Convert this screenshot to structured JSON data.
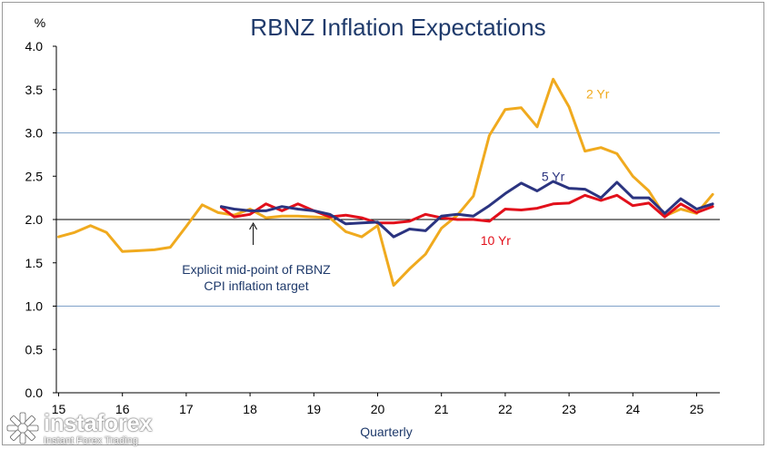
{
  "chart_data": {
    "type": "line",
    "title": "RBNZ Inflation Expectations",
    "yunit": "%",
    "xlabel": "Quarterly",
    "ylim": [
      0,
      4
    ],
    "yticks": [
      "0.0",
      "0.5",
      "1.0",
      "1.5",
      "2.0",
      "2.5",
      "3.0",
      "3.5",
      "4.0"
    ],
    "xlim": [
      15,
      25.35
    ],
    "xticks": [
      "15",
      "16",
      "17",
      "18",
      "19",
      "20",
      "21",
      "22",
      "23",
      "24",
      "25"
    ],
    "reference_lines": [
      {
        "y": 1.0,
        "color": "#7fa2c9"
      },
      {
        "y": 2.0,
        "color": "#000000"
      },
      {
        "y": 3.0,
        "color": "#7fa2c9"
      }
    ],
    "annotation": {
      "lines": [
        "Explicit mid-point of RBNZ",
        "CPI inflation target"
      ],
      "x": 18.05,
      "y": 2.0
    },
    "series": [
      {
        "name": "2 Yr",
        "color": "#f0aa1e",
        "label_at": [
          23.45,
          3.45
        ],
        "x": [
          15,
          15.25,
          15.5,
          15.75,
          16,
          16.25,
          16.5,
          16.75,
          17,
          17.25,
          17.5,
          17.75,
          18,
          18.25,
          18.5,
          18.75,
          19,
          19.25,
          19.5,
          19.75,
          20,
          20.25,
          20.5,
          20.75,
          21,
          21.25,
          21.5,
          21.75,
          22,
          22.25,
          22.5,
          22.75,
          23,
          23.25,
          23.5,
          23.75,
          24,
          24.25,
          24.5,
          24.75,
          25,
          25.25
        ],
        "values": [
          1.8,
          1.85,
          1.93,
          1.85,
          1.63,
          1.64,
          1.65,
          1.68,
          1.92,
          2.17,
          2.08,
          2.05,
          2.12,
          2.02,
          2.04,
          2.04,
          2.03,
          2.02,
          1.86,
          1.8,
          1.93,
          1.24,
          1.43,
          1.6,
          1.9,
          2.05,
          2.27,
          2.97,
          3.27,
          3.29,
          3.07,
          3.62,
          3.3,
          2.79,
          2.83,
          2.76,
          2.5,
          2.33,
          2.04,
          2.12,
          2.07,
          2.29
        ]
      },
      {
        "name": "5 Yr",
        "color": "#2b3480",
        "label_at": [
          22.75,
          2.5
        ],
        "x": [
          17.55,
          17.75,
          18,
          18.25,
          18.5,
          18.75,
          19,
          19.25,
          19.5,
          19.75,
          20,
          20.25,
          20.5,
          20.75,
          21,
          21.25,
          21.5,
          21.75,
          22,
          22.25,
          22.5,
          22.75,
          23,
          23.25,
          23.5,
          23.75,
          24,
          24.25,
          24.5,
          24.75,
          25,
          25.25
        ],
        "values": [
          2.15,
          2.12,
          2.1,
          2.1,
          2.15,
          2.12,
          2.1,
          2.06,
          1.95,
          1.96,
          1.97,
          1.8,
          1.89,
          1.87,
          2.04,
          2.06,
          2.04,
          2.16,
          2.3,
          2.42,
          2.33,
          2.44,
          2.36,
          2.35,
          2.25,
          2.43,
          2.25,
          2.25,
          2.07,
          2.24,
          2.12,
          2.18
        ]
      },
      {
        "name": "10 Yr",
        "color": "#e2101b",
        "label_at": [
          21.85,
          1.76
        ],
        "x": [
          17.55,
          17.75,
          18,
          18.25,
          18.5,
          18.75,
          19,
          19.25,
          19.5,
          19.75,
          20,
          20.25,
          20.5,
          20.75,
          21,
          21.25,
          21.5,
          21.75,
          22,
          22.25,
          22.5,
          22.75,
          23,
          23.25,
          23.5,
          23.75,
          24,
          24.25,
          24.5,
          24.75,
          25,
          25.25
        ],
        "values": [
          2.14,
          2.03,
          2.06,
          2.18,
          2.1,
          2.18,
          2.1,
          2.03,
          2.05,
          2.02,
          1.96,
          1.96,
          1.98,
          2.06,
          2.02,
          2.0,
          2.0,
          1.98,
          2.12,
          2.11,
          2.13,
          2.18,
          2.19,
          2.28,
          2.22,
          2.28,
          2.16,
          2.19,
          2.03,
          2.18,
          2.08,
          2.15
        ]
      }
    ]
  },
  "brand": {
    "name": "instaforex",
    "tagline": "Instant Forex Trading"
  }
}
